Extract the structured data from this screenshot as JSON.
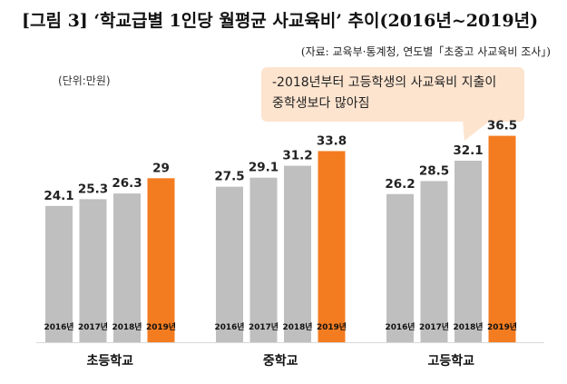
{
  "title": "[그림 3] ‘학교급별 1인당 월평균 사교육비’ 추이(2016년~2019년)",
  "source": "(자료: 교육부·통계청, 연도별「초중고 사교육비 조사」)",
  "unit": "(단위:만원)",
  "callout": {
    "line1": "-2018년부터 고등학생의 사교육비 지출이",
    "line2": "중학생보다 많아짐"
  },
  "colors": {
    "bar": "#bfbfbf",
    "highlight": "#f47c20",
    "text": "#222222"
  },
  "chart_data": {
    "type": "bar",
    "title": "학교급별 1인당 월평균 사교육비 추이(2016년~2019년)",
    "ylabel": "만원",
    "ylim": [
      0,
      40
    ],
    "groups": [
      "초등학교",
      "중학교",
      "고등학교"
    ],
    "series_labels": [
      "2016년",
      "2017년",
      "2018년",
      "2019년"
    ],
    "values": [
      [
        24.1,
        25.3,
        26.3,
        29
      ],
      [
        27.5,
        29.1,
        31.2,
        33.8
      ],
      [
        26.2,
        28.5,
        32.1,
        36.5
      ]
    ],
    "value_labels": [
      [
        "24.1",
        "25.3",
        "26.3",
        "29"
      ],
      [
        "27.5",
        "29.1",
        "31.2",
        "33.8"
      ],
      [
        "26.2",
        "28.5",
        "32.1",
        "36.5"
      ]
    ]
  }
}
